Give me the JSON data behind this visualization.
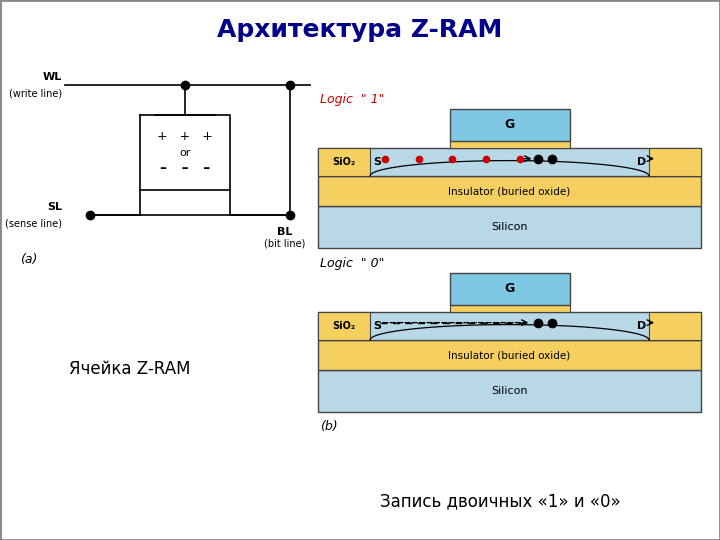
{
  "title": "Архитектура Z-RAM",
  "title_color": "#00008B",
  "title_fontsize": 18,
  "subtitle_left": "Ячейка Z-RAM",
  "subtitle_right": "Запись двоичных «1» и «0»",
  "subtitle_fontsize": 12,
  "bg_color": "#ffffff",
  "border_color": "#888888",
  "yellow_color": "#F5D060",
  "silicon_color": "#B8D8E8",
  "gate_color": "#7EC8E3",
  "logic1_label": "Logic  \" 1\"",
  "logic0_label": "Logic  \" 0\"",
  "logic1_color": "#CC0000",
  "logic0_color": "#000000",
  "label_a": "(a)",
  "label_b": "(b)"
}
